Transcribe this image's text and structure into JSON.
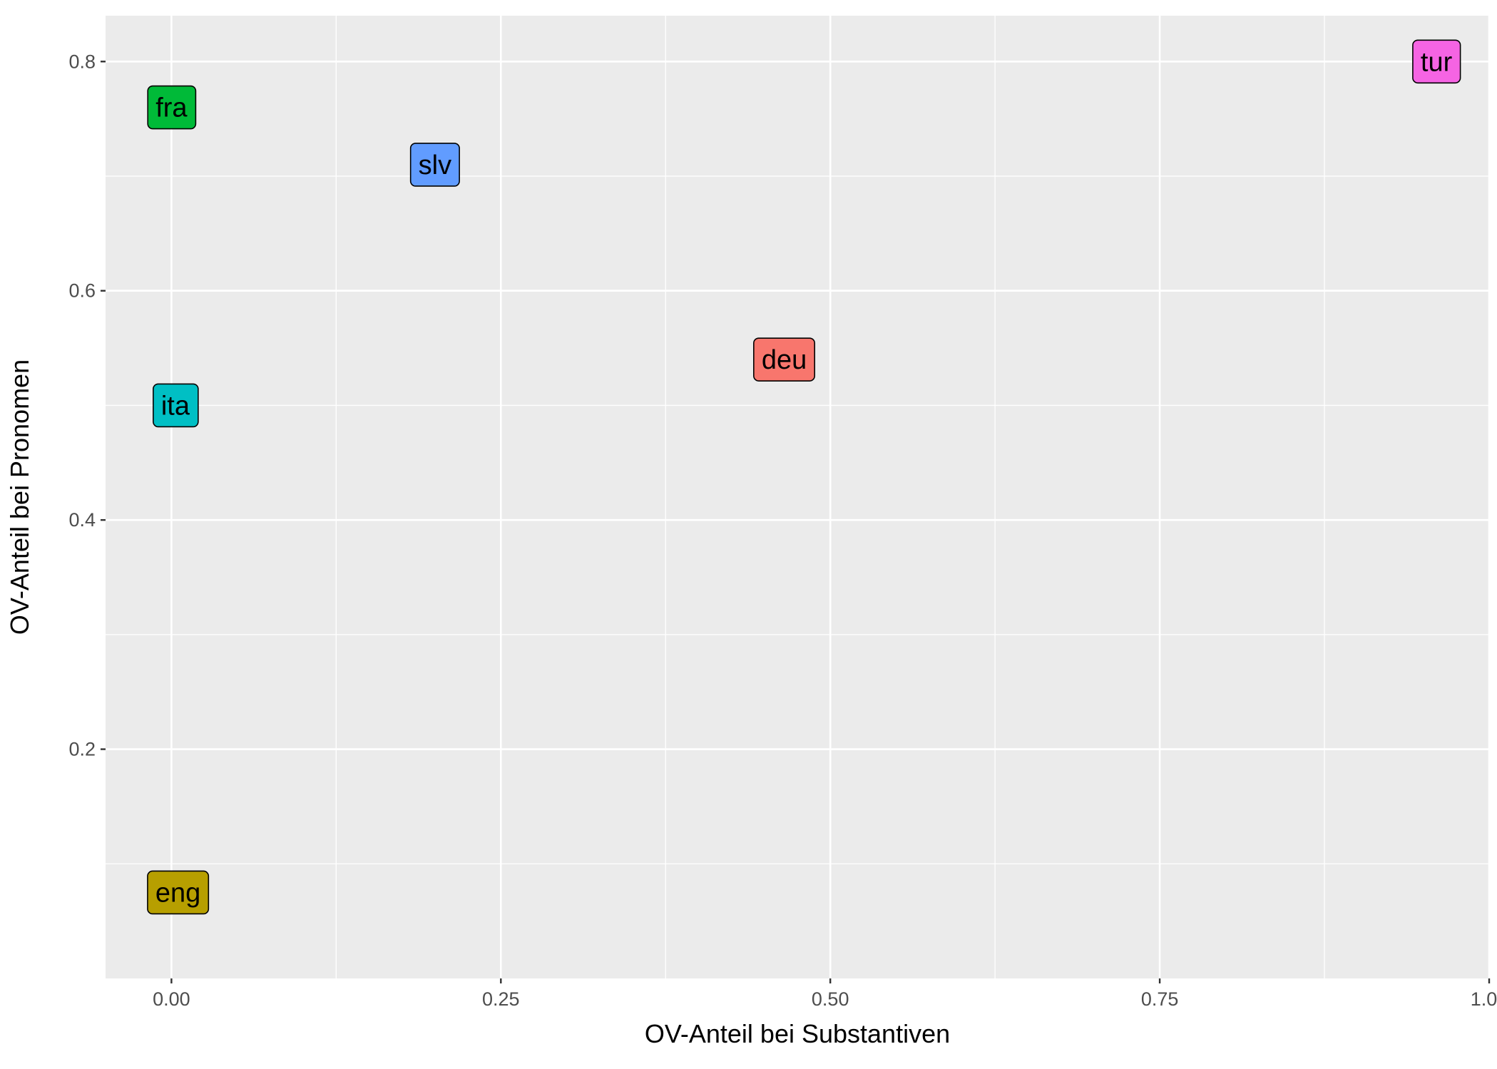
{
  "chart_data": {
    "type": "scatter",
    "title": "",
    "xlabel": "OV-Anteil bei Substantiven",
    "ylabel": "OV-Anteil bei Pronomen",
    "xlim": [
      -0.05,
      1.0
    ],
    "ylim": [
      0.0,
      0.84
    ],
    "x_ticks": [
      0.0,
      0.25,
      0.5,
      0.75,
      1.0
    ],
    "x_tick_labels": [
      "0.00",
      "0.25",
      "0.50",
      "0.75",
      "1.00"
    ],
    "y_ticks": [
      0.2,
      0.4,
      0.6,
      0.8
    ],
    "y_tick_labels": [
      "0.2",
      "0.4",
      "0.6",
      "0.8"
    ],
    "grid": true,
    "background": "#ebebeb",
    "points": [
      {
        "label": "fra",
        "x": 0.0,
        "y": 0.76,
        "color": "#00ba38"
      },
      {
        "label": "slv",
        "x": 0.2,
        "y": 0.71,
        "color": "#619cff"
      },
      {
        "label": "tur",
        "x": 0.96,
        "y": 0.8,
        "color": "#f564e3"
      },
      {
        "label": "deu",
        "x": 0.465,
        "y": 0.54,
        "color": "#f8766d"
      },
      {
        "label": "ita",
        "x": 0.003,
        "y": 0.5,
        "color": "#00bfc4"
      },
      {
        "label": "eng",
        "x": 0.005,
        "y": 0.075,
        "color": "#b79f00"
      }
    ]
  }
}
